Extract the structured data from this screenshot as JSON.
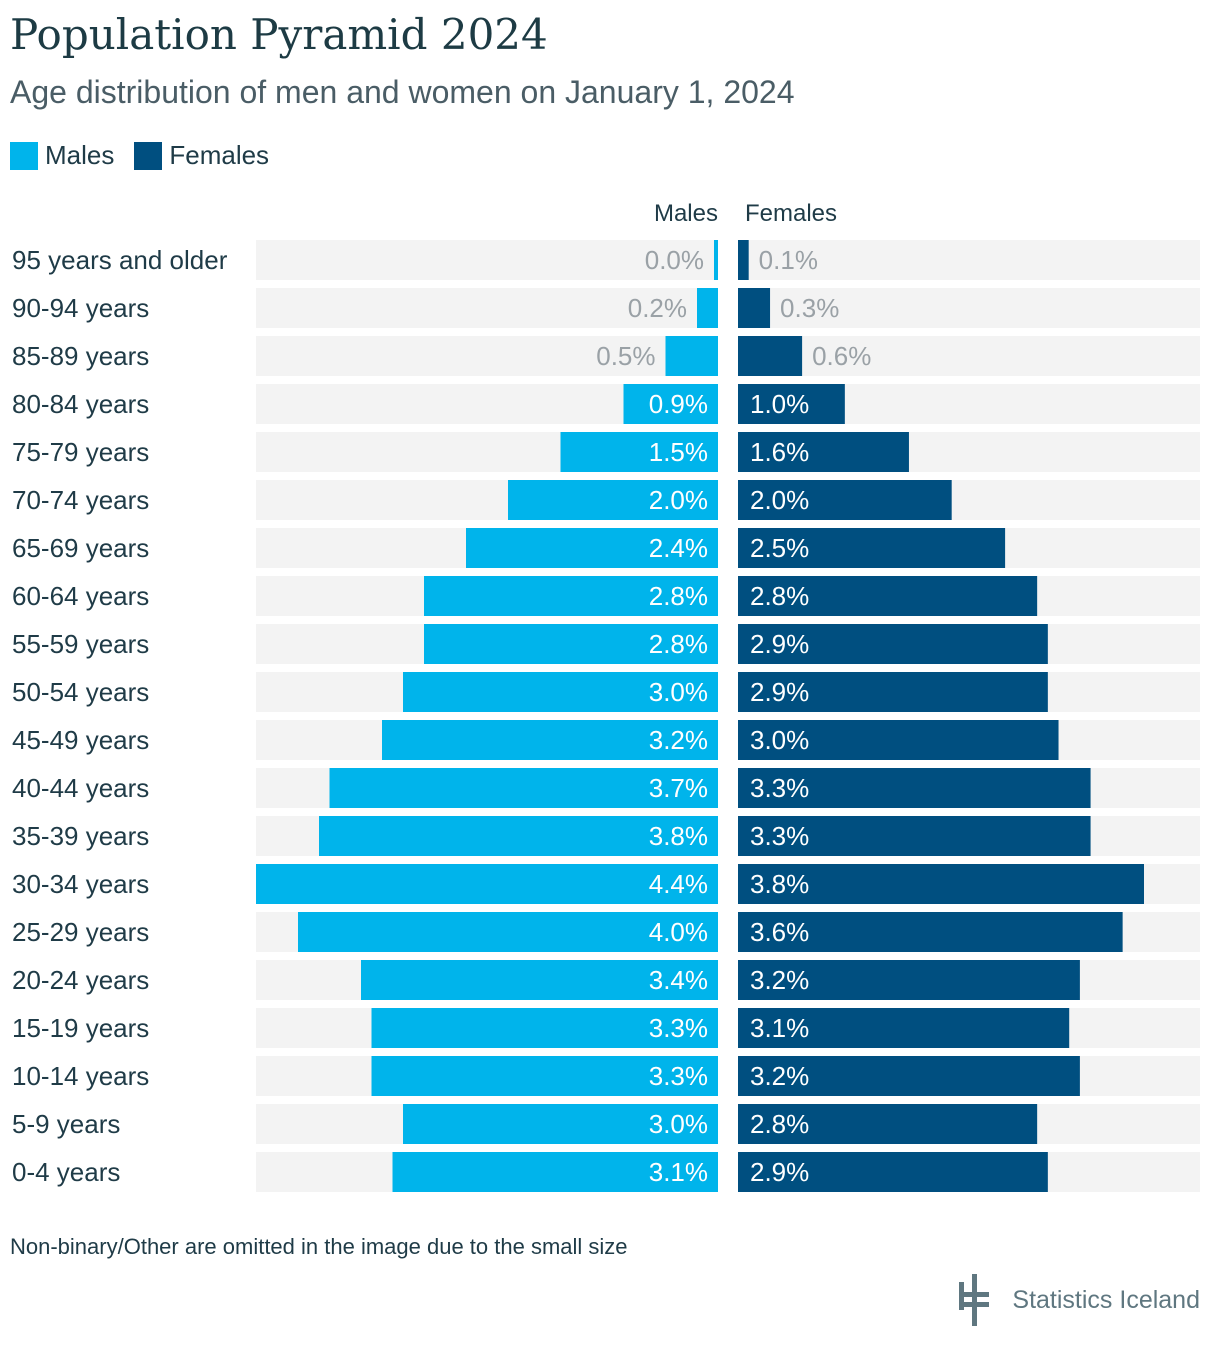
{
  "header": {
    "title": "Population Pyramid 2024",
    "subtitle": "Age distribution of men and women on January 1, 2024"
  },
  "legend": {
    "males": "Males",
    "females": "Females"
  },
  "colors": {
    "males": "#00b4eb",
    "females": "#004f80",
    "track": "#f3f3f3",
    "label_inside": "#ffffff",
    "label_outside": "#9aa1a6"
  },
  "footnote": "Non-binary/Other are omitted in the image due to the small size",
  "brand": {
    "name": "Statistics Iceland",
    "icon": "statistics-iceland-logo-icon"
  },
  "chart_data": {
    "type": "bar",
    "orientation": "horizontal",
    "categories": [
      "95 years and older",
      "90-94 years",
      "85-89 years",
      "80-84 years",
      "75-79 years",
      "70-74 years",
      "65-69 years",
      "60-64 years",
      "55-59 years",
      "50-54 years",
      "45-49 years",
      "40-44 years",
      "35-39 years",
      "30-34 years",
      "25-29 years",
      "20-24 years",
      "15-19 years",
      "10-14 years",
      "5-9 years",
      "0-4 years"
    ],
    "series": [
      {
        "name": "Males",
        "values": [
          0.0,
          0.2,
          0.5,
          0.9,
          1.5,
          2.0,
          2.4,
          2.8,
          2.8,
          3.0,
          3.2,
          3.7,
          3.8,
          4.4,
          4.0,
          3.4,
          3.3,
          3.3,
          3.0,
          3.1
        ],
        "labels": [
          "0.0%",
          "0.2%",
          "0.5%",
          "0.9%",
          "1.5%",
          "2.0%",
          "2.4%",
          "2.8%",
          "2.8%",
          "3.0%",
          "3.2%",
          "3.7%",
          "3.8%",
          "4.4%",
          "4.0%",
          "3.4%",
          "3.3%",
          "3.3%",
          "3.0%",
          "3.1%"
        ]
      },
      {
        "name": "Females",
        "values": [
          0.1,
          0.3,
          0.6,
          1.0,
          1.6,
          2.0,
          2.5,
          2.8,
          2.9,
          2.9,
          3.0,
          3.3,
          3.3,
          3.8,
          3.6,
          3.2,
          3.1,
          3.2,
          2.8,
          2.9
        ],
        "labels": [
          "0.1%",
          "0.3%",
          "0.6%",
          "1.0%",
          "1.6%",
          "2.0%",
          "2.5%",
          "2.8%",
          "2.9%",
          "2.9%",
          "3.0%",
          "3.3%",
          "3.3%",
          "3.8%",
          "3.6%",
          "3.2%",
          "3.1%",
          "3.2%",
          "2.8%",
          "2.9%"
        ]
      }
    ],
    "column_headers": [
      "Males",
      "Females"
    ],
    "xlim": [
      0,
      4.4
    ],
    "unit": "%",
    "legend_position": "top-left",
    "grid": false
  }
}
